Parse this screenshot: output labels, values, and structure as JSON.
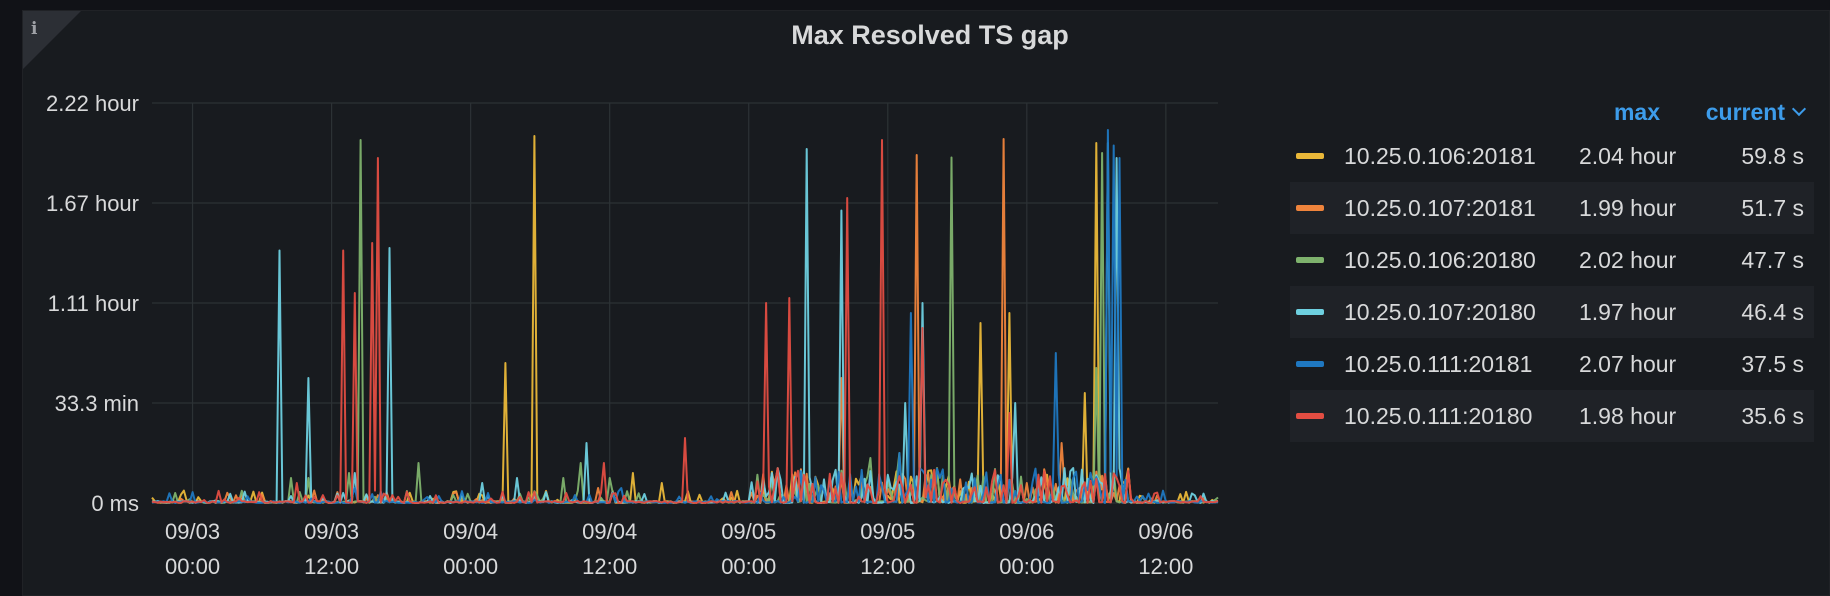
{
  "panel": {
    "title": "Max Resolved TS gap",
    "info_icon": "i"
  },
  "legend": {
    "headers": {
      "max": "max",
      "current": "current"
    },
    "rows": [
      {
        "name": "10.25.0.106:20181",
        "max": "2.04 hour",
        "current": "59.8 s"
      },
      {
        "name": "10.25.0.107:20181",
        "max": "1.99 hour",
        "current": "51.7 s"
      },
      {
        "name": "10.25.0.106:20180",
        "max": "2.02 hour",
        "current": "47.7 s"
      },
      {
        "name": "10.25.0.107:20180",
        "max": "1.97 hour",
        "current": "46.4 s"
      },
      {
        "name": "10.25.0.111:20181",
        "max": "2.07 hour",
        "current": "37.5 s"
      },
      {
        "name": "10.25.0.111:20180",
        "max": "1.98 hour",
        "current": "35.6 s"
      }
    ]
  },
  "chart_data": {
    "type": "line",
    "title": "Max Resolved TS gap",
    "grid": true,
    "legend_position": "right",
    "ylim_seconds": [
      0,
      8000
    ],
    "yticks": [
      {
        "value": 0,
        "label": "0 ms"
      },
      {
        "value": 2000,
        "label": "33.3 min"
      },
      {
        "value": 4000,
        "label": "1.11 hour"
      },
      {
        "value": 6000,
        "label": "1.67 hour"
      },
      {
        "value": 8000,
        "label": "2.22 hour"
      }
    ],
    "xlim": [
      "2020-09-02 20:30",
      "2020-09-06 16:30"
    ],
    "xticks": [
      {
        "value": "09/03 00:00",
        "line1": "09/03",
        "line2": "00:00"
      },
      {
        "value": "09/03 12:00",
        "line1": "09/03",
        "line2": "12:00"
      },
      {
        "value": "09/04 00:00",
        "line1": "09/04",
        "line2": "00:00"
      },
      {
        "value": "09/04 12:00",
        "line1": "09/04",
        "line2": "12:00"
      },
      {
        "value": "09/05 00:00",
        "line1": "09/05",
        "line2": "00:00"
      },
      {
        "value": "09/05 12:00",
        "line1": "09/05",
        "line2": "12:00"
      },
      {
        "value": "09/06 00:00",
        "line1": "09/06",
        "line2": "00:00"
      },
      {
        "value": "09/06 12:00",
        "line1": "09/06",
        "line2": "12:00"
      }
    ],
    "series": [
      {
        "name": "10.25.0.106:20181",
        "color": "#eab839",
        "peaks": [
          [
            "09/03 10:00",
            150
          ],
          [
            "09/04 03:00",
            2800
          ],
          [
            "09/04 05:30",
            7340
          ],
          [
            "09/04 14:00",
            600
          ],
          [
            "09/04 16:30",
            400
          ],
          [
            "09/05 08:00",
            500
          ],
          [
            "09/05 12:30",
            300
          ],
          [
            "09/05 20:00",
            3600
          ],
          [
            "09/05 22:30",
            3800
          ],
          [
            "09/06 05:00",
            2200
          ],
          [
            "09/06 06:00",
            7200
          ]
        ]
      },
      {
        "name": "10.25.0.107:20181",
        "color": "#ef843c",
        "peaks": [
          [
            "09/03 10:30",
            250
          ],
          [
            "09/04 11:00",
            300
          ],
          [
            "09/05 02:00",
            600
          ],
          [
            "09/05 08:00",
            2500
          ],
          [
            "09/05 14:30",
            6960
          ],
          [
            "09/05 22:00",
            7280
          ],
          [
            "09/06 00:00",
            400
          ],
          [
            "09/06 03:00",
            1200
          ]
        ]
      },
      {
        "name": "10.25.0.106:20180",
        "color": "#7eb26d",
        "peaks": [
          [
            "09/03 08:30",
            500
          ],
          [
            "09/03 10:00",
            500
          ],
          [
            "09/03 13:30",
            600
          ],
          [
            "09/03 14:30",
            7260
          ],
          [
            "09/03 19:30",
            800
          ],
          [
            "09/04 08:00",
            500
          ],
          [
            "09/04 09:30",
            800
          ],
          [
            "09/04 12:00",
            500
          ],
          [
            "09/05 10:30",
            900
          ],
          [
            "09/05 13:00",
            1000
          ],
          [
            "09/05 17:30",
            6910
          ],
          [
            "09/06 06:00",
            2700
          ],
          [
            "09/06 06:30",
            7000
          ]
        ]
      },
      {
        "name": "10.25.0.107:20180",
        "color": "#6ed0e0",
        "peaks": [
          [
            "09/03 07:30",
            5050
          ],
          [
            "09/03 10:00",
            2500
          ],
          [
            "09/03 14:00",
            600
          ],
          [
            "09/03 17:00",
            5100
          ],
          [
            "09/04 01:00",
            400
          ],
          [
            "09/04 04:00",
            500
          ],
          [
            "09/04 10:00",
            1200
          ],
          [
            "09/05 02:00",
            600
          ],
          [
            "09/05 05:00",
            7080
          ],
          [
            "09/05 08:00",
            5850
          ],
          [
            "09/05 13:30",
            2000
          ],
          [
            "09/05 15:00",
            4000
          ],
          [
            "09/05 23:00",
            2000
          ],
          [
            "09/06 07:00",
            7200
          ],
          [
            "09/06 07:45",
            6900
          ]
        ]
      },
      {
        "name": "10.25.0.111:20181",
        "color": "#1f78c1",
        "peaks": [
          [
            "09/03 14:00",
            300
          ],
          [
            "09/04 01:30",
            200
          ],
          [
            "09/04 13:00",
            300
          ],
          [
            "09/05 13:00",
            1000
          ],
          [
            "09/05 14:00",
            3800
          ],
          [
            "09/06 02:30",
            3000
          ],
          [
            "09/06 04:00",
            500
          ],
          [
            "09/06 07:00",
            7460
          ],
          [
            "09/06 07:30",
            7150
          ],
          [
            "09/06 08:00",
            6900
          ]
        ]
      },
      {
        "name": "10.25.0.111:20180",
        "color": "#e24d42",
        "peaks": [
          [
            "09/03 09:00",
            400
          ],
          [
            "09/03 13:00",
            5050
          ],
          [
            "09/03 14:00",
            4200
          ],
          [
            "09/03 15:30",
            5200
          ],
          [
            "09/03 16:00",
            6900
          ],
          [
            "09/04 11:30",
            800
          ],
          [
            "09/04 18:30",
            1300
          ],
          [
            "09/05 01:30",
            4000
          ],
          [
            "09/05 03:30",
            4100
          ],
          [
            "09/05 08:30",
            6100
          ],
          [
            "09/05 11:30",
            7260
          ],
          [
            "09/05 15:00",
            3500
          ],
          [
            "09/05 22:30",
            1800
          ]
        ]
      }
    ]
  }
}
